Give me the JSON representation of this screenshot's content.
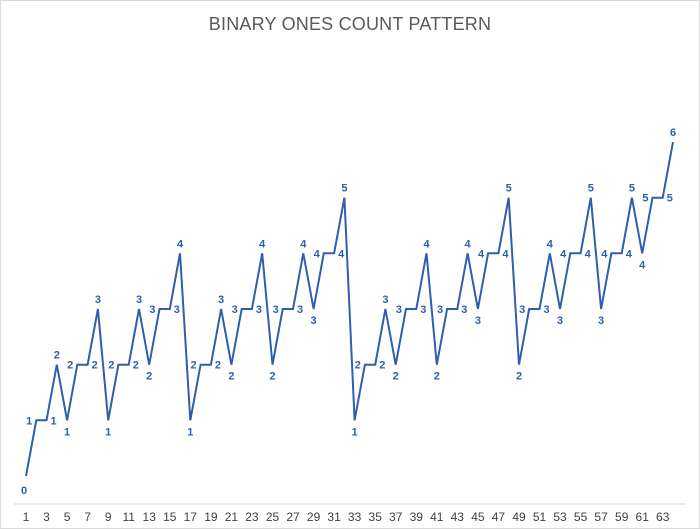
{
  "chart_data": {
    "type": "line",
    "title": "BINARY ONES COUNT PATTERN",
    "xlabel": "",
    "ylabel": "",
    "x": [
      1,
      2,
      3,
      4,
      5,
      6,
      7,
      8,
      9,
      10,
      11,
      12,
      13,
      14,
      15,
      16,
      17,
      18,
      19,
      20,
      21,
      22,
      23,
      24,
      25,
      26,
      27,
      28,
      29,
      30,
      31,
      32,
      33,
      34,
      35,
      36,
      37,
      38,
      39,
      40,
      41,
      42,
      43,
      44,
      45,
      46,
      47,
      48,
      49,
      50,
      51,
      52,
      53,
      54,
      55,
      56,
      57,
      58,
      59,
      60,
      61,
      62,
      63,
      64
    ],
    "x_tick_labels": [
      "1",
      "3",
      "5",
      "7",
      "9",
      "11",
      "13",
      "15",
      "17",
      "19",
      "21",
      "23",
      "25",
      "27",
      "29",
      "31",
      "33",
      "35",
      "37",
      "39",
      "41",
      "43",
      "45",
      "47",
      "49",
      "51",
      "53",
      "55",
      "57",
      "59",
      "61",
      "63"
    ],
    "series": [
      {
        "values": [
          0,
          1,
          1,
          2,
          1,
          2,
          2,
          3,
          1,
          2,
          2,
          3,
          2,
          3,
          3,
          4,
          1,
          2,
          2,
          3,
          2,
          3,
          3,
          4,
          2,
          3,
          3,
          4,
          3,
          4,
          4,
          5,
          1,
          2,
          2,
          3,
          2,
          3,
          3,
          4,
          2,
          3,
          3,
          4,
          3,
          4,
          4,
          5,
          2,
          3,
          3,
          4,
          3,
          4,
          4,
          5,
          3,
          4,
          4,
          5,
          4,
          5,
          5,
          6
        ],
        "color": "#2e5fad"
      }
    ],
    "ylim": [
      0,
      6
    ],
    "grid": false,
    "legend": "none",
    "data_labels": true
  },
  "colors": {
    "line": "#2e5fad",
    "axis": "#d9d9d9",
    "title": "#595959",
    "ticks": "#404040"
  }
}
